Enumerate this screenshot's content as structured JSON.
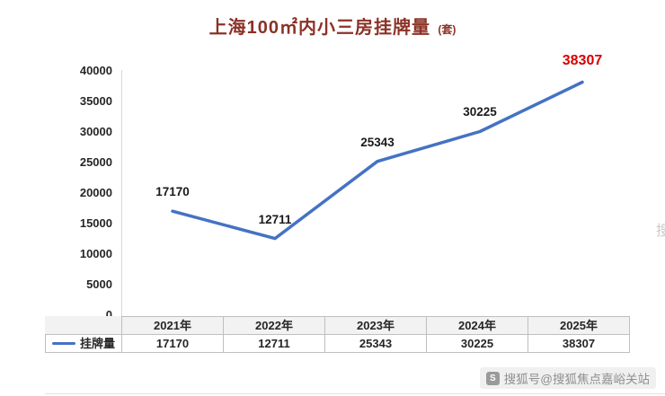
{
  "title": {
    "text": "上海100㎡内小三房挂牌量",
    "unit": "(套)",
    "color": "#8b3226"
  },
  "chart_data": {
    "type": "line",
    "categories": [
      "2021年",
      "2022年",
      "2023年",
      "2024年",
      "2025年"
    ],
    "series": [
      {
        "name": "挂牌量",
        "values": [
          17170,
          12711,
          25343,
          30225,
          38307
        ]
      }
    ],
    "ylim": [
      0,
      40000
    ],
    "y_ticks": [
      0,
      5000,
      10000,
      15000,
      20000,
      25000,
      30000,
      35000,
      40000
    ],
    "line_color": "#4472c4",
    "label_color": "#1a1a1a",
    "last_label_color": "#d90000",
    "grid": false,
    "legend_position": "bottom-table"
  },
  "watermark": {
    "text": "搜狐号@搜狐焦点嘉峪关站",
    "logo": "sohu-logo-icon",
    "partial": "搜"
  }
}
